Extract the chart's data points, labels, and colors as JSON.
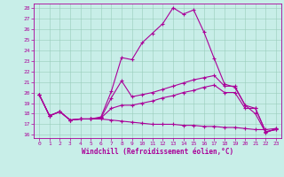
{
  "xlabel": "Windchill (Refroidissement éolien,°C)",
  "bg_color": "#c8eee8",
  "line_color": "#aa0099",
  "grid_color": "#99ccbb",
  "xmin": -0.5,
  "xmax": 23.5,
  "ymin": 15.7,
  "ymax": 28.4,
  "yticks": [
    16,
    17,
    18,
    19,
    20,
    21,
    22,
    23,
    24,
    25,
    26,
    27,
    28
  ],
  "xticks": [
    0,
    1,
    2,
    3,
    4,
    5,
    6,
    7,
    8,
    9,
    10,
    11,
    12,
    13,
    14,
    15,
    16,
    17,
    18,
    19,
    20,
    21,
    22,
    23
  ],
  "curve_high": [
    19.8,
    17.8,
    18.2,
    17.4,
    17.5,
    17.5,
    17.7,
    20.1,
    23.3,
    23.1,
    24.7,
    25.6,
    26.5,
    28.0,
    27.4,
    27.8,
    25.7,
    23.2,
    20.8,
    20.5,
    18.8,
    18.0,
    16.2,
    16.6
  ],
  "curve_mid_high": [
    19.8,
    17.8,
    18.2,
    17.4,
    17.5,
    17.5,
    17.6,
    19.5,
    21.1,
    19.6,
    19.8,
    20.0,
    20.3,
    20.6,
    20.9,
    21.2,
    21.4,
    21.6,
    20.6,
    20.6,
    18.8,
    18.5,
    16.3,
    16.5
  ],
  "curve_mid_low": [
    19.8,
    17.8,
    18.2,
    17.4,
    17.5,
    17.5,
    17.6,
    18.5,
    18.8,
    18.8,
    19.0,
    19.2,
    19.5,
    19.7,
    20.0,
    20.2,
    20.5,
    20.7,
    20.0,
    20.0,
    18.5,
    18.5,
    16.3,
    16.5
  ],
  "curve_low": [
    19.8,
    17.8,
    18.2,
    17.4,
    17.5,
    17.5,
    17.5,
    17.4,
    17.3,
    17.2,
    17.1,
    17.0,
    17.0,
    17.0,
    16.9,
    16.9,
    16.8,
    16.8,
    16.7,
    16.7,
    16.6,
    16.5,
    16.5,
    16.6
  ]
}
